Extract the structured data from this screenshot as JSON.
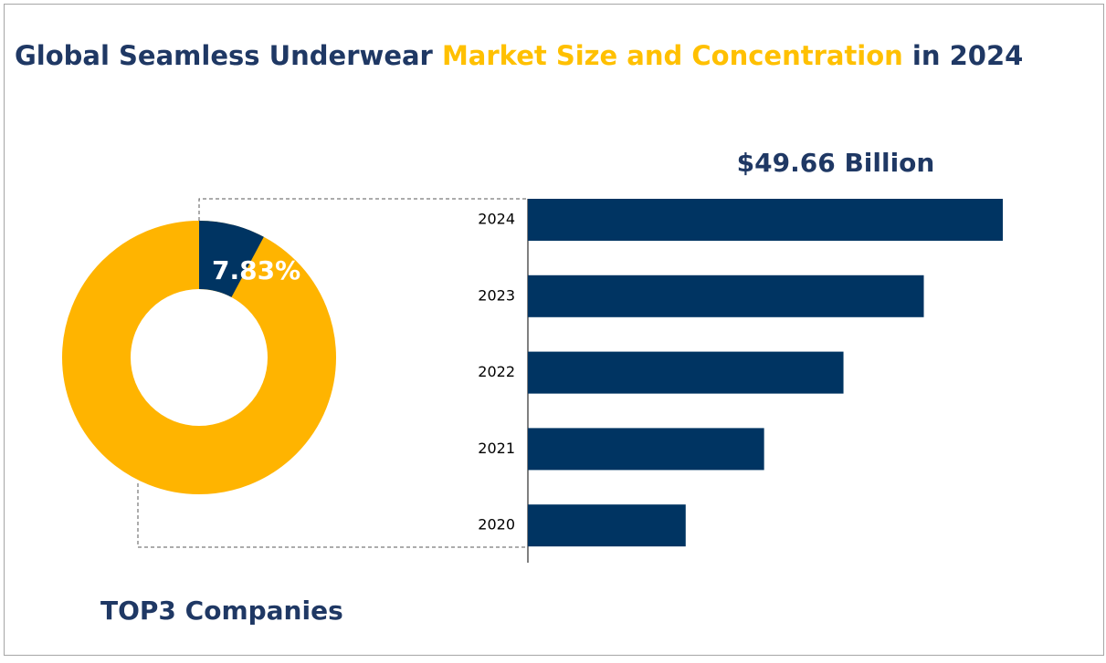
{
  "chart_data": [
    {
      "type": "donut",
      "title_parts": [
        {
          "text": "Global Seamless Underwear ",
          "color": "#1f3864"
        },
        {
          "text": "Market Size and Concentration",
          "color": "#ffc000"
        },
        {
          "text": " in 2024",
          "color": "#1f3864"
        }
      ],
      "caption": "TOP3 Companies",
      "values": [
        7.83
      ],
      "value_labels": [
        "7.83%"
      ],
      "color": "#003462",
      "rest_color": "#ffb400"
    },
    {
      "type": "bar",
      "orientation": "horizontal",
      "categories": [
        "2024",
        "2023",
        "2022",
        "2021",
        "2020"
      ],
      "values": [
        49.66,
        41.4,
        33.0,
        24.7,
        16.5
      ],
      "value_labels": [
        "$49.66 Billion",
        null,
        null,
        null,
        null
      ],
      "color": "#003462"
    }
  ]
}
